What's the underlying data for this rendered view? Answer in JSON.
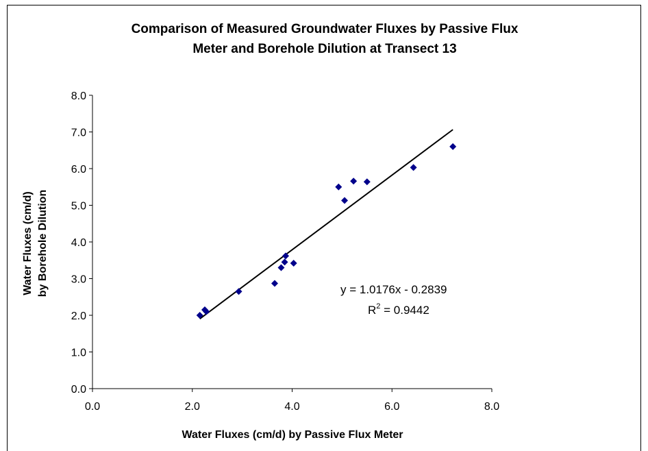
{
  "chart_data": {
    "type": "scatter",
    "title_line1": "Comparison of Measured Groundwater Fluxes by Passive Flux",
    "title_line2": "Meter and Borehole Dilution at Transect 13",
    "xlabel": "Water Fluxes (cm/d) by Passive Flux Meter",
    "ylabel_line1": "Water Fluxes (cm/d)",
    "ylabel_line2": "by Borehole Dilution",
    "xlim": [
      0,
      8
    ],
    "ylim": [
      0,
      8
    ],
    "x_ticks": [
      "0.0",
      "2.0",
      "4.0",
      "6.0",
      "8.0"
    ],
    "y_ticks": [
      "0.0",
      "1.0",
      "2.0",
      "3.0",
      "4.0",
      "5.0",
      "6.0",
      "7.0",
      "8.0"
    ],
    "grid": false,
    "marker_color": "#00008B",
    "points": [
      {
        "x": 2.15,
        "y": 2.0
      },
      {
        "x": 2.25,
        "y": 2.15
      },
      {
        "x": 2.28,
        "y": 2.1
      },
      {
        "x": 2.93,
        "y": 2.65
      },
      {
        "x": 3.65,
        "y": 2.87
      },
      {
        "x": 3.78,
        "y": 3.3
      },
      {
        "x": 3.85,
        "y": 3.45
      },
      {
        "x": 3.87,
        "y": 3.62
      },
      {
        "x": 4.03,
        "y": 3.42
      },
      {
        "x": 4.93,
        "y": 5.5
      },
      {
        "x": 5.05,
        "y": 5.13
      },
      {
        "x": 5.23,
        "y": 5.66
      },
      {
        "x": 5.5,
        "y": 5.64
      },
      {
        "x": 6.43,
        "y": 6.03
      },
      {
        "x": 7.22,
        "y": 6.6
      }
    ],
    "trendline": {
      "slope": 1.0176,
      "intercept": -0.2839,
      "x_start": 2.15,
      "x_end": 7.22
    },
    "equation_text": "y = 1.0176x - 0.2839",
    "r2_prefix": "R",
    "r2_superscript": "2",
    "r2_value": " = 0.9442"
  }
}
